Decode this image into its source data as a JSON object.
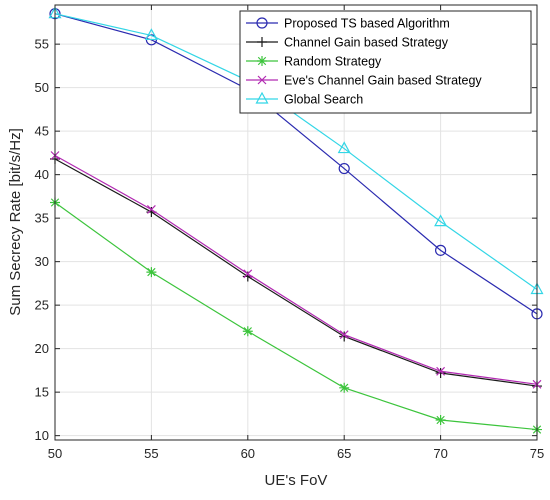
{
  "chart_data": {
    "type": "line",
    "title": "",
    "xlabel": "UE's FoV",
    "ylabel": "Sum Secrecy Rate [bit/s/Hz]",
    "xlim": [
      50,
      75
    ],
    "ylim": [
      9.5,
      59.5
    ],
    "xticks": [
      50,
      55,
      60,
      65,
      70,
      75
    ],
    "yticks": [
      10,
      15,
      20,
      25,
      30,
      35,
      40,
      45,
      50,
      55
    ],
    "grid": true,
    "legend_position": "top-right",
    "x": [
      50,
      55,
      60,
      65,
      70,
      75
    ],
    "series": [
      {
        "name": "Proposed TS based Algorithm",
        "color": "#2b2bb0",
        "marker": "circle",
        "values": [
          58.5,
          55.5,
          49.8,
          40.7,
          31.3,
          24.0
        ]
      },
      {
        "name": "Channel Gain based Strategy",
        "color": "#1a1a1a",
        "marker": "plus",
        "values": [
          41.8,
          35.7,
          28.3,
          21.4,
          17.2,
          15.7
        ]
      },
      {
        "name": "Random Strategy",
        "color": "#3cc43c",
        "marker": "asterisk",
        "values": [
          36.8,
          28.8,
          22.0,
          15.5,
          11.8,
          10.7
        ]
      },
      {
        "name": "Eve's Channel Gain based Strategy",
        "color": "#b22ab2",
        "marker": "x",
        "values": [
          42.2,
          36.0,
          28.6,
          21.6,
          17.4,
          15.9
        ]
      },
      {
        "name": "Global Search",
        "color": "#33d6e6",
        "marker": "triangle",
        "values": [
          58.5,
          56.0,
          50.8,
          43.0,
          34.6,
          26.8
        ]
      }
    ]
  }
}
